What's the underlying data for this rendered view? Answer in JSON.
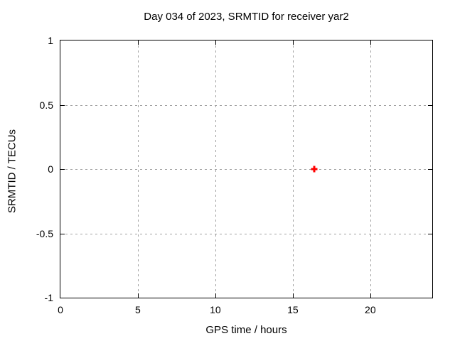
{
  "chart_data": {
    "type": "scatter",
    "title": "Day 034 of 2023, SRMTID for receiver yar2",
    "xlabel": "GPS time / hours",
    "ylabel": "SRMTID / TECUs",
    "xlim": [
      0,
      24
    ],
    "ylim": [
      -1,
      1
    ],
    "xticks": [
      0,
      5,
      10,
      15,
      20
    ],
    "xtick_labels": [
      "0",
      "5",
      "10",
      "15",
      "20"
    ],
    "yticks": [
      -1,
      -0.5,
      0,
      0.5,
      1
    ],
    "ytick_labels": [
      "-1",
      "-0.5",
      "0",
      "0.5",
      "1"
    ],
    "grid": true,
    "legend": "none",
    "series": [
      {
        "name": "SRMTID",
        "marker": "plus",
        "color": "#ff0000",
        "points": [
          {
            "x": 16.37,
            "y": 0.0
          }
        ]
      }
    ]
  },
  "colors": {
    "background": "#ffffff",
    "axis": "#000000",
    "grid": "#a2a2a2",
    "text": "#000000",
    "marker": "#ff0000"
  }
}
